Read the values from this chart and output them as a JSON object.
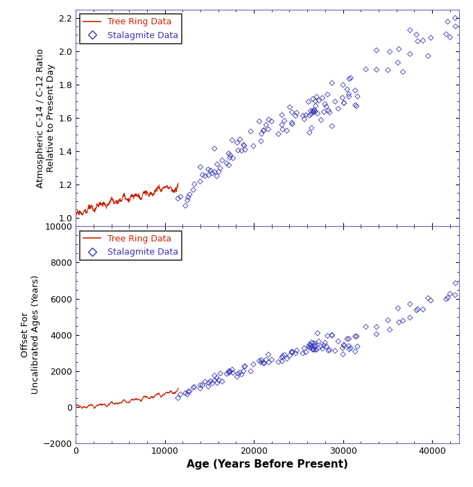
{
  "xlabel": "Age (Years Before Present)",
  "ylabel1": "Atmospheric C-14 / C-12 Ratio\nRelative to Present Day",
  "ylabel2": "Offset For\nUncalibrated Ages (Years)",
  "xlim": [
    0,
    43000
  ],
  "ylim1": [
    0.95,
    2.25
  ],
  "ylim2": [
    -2000,
    10000
  ],
  "yticks1": [
    1.0,
    1.2,
    1.4,
    1.6,
    1.8,
    2.0,
    2.2
  ],
  "yticks2": [
    -2000,
    0,
    2000,
    4000,
    6000,
    8000,
    10000
  ],
  "xticks": [
    0,
    10000,
    20000,
    30000,
    40000
  ],
  "tree_color": "#cc2200",
  "stalagmite_color": "#3333bb",
  "background_color": "#ffffff",
  "spine_color": "#6666cc",
  "legend_label_tree": "Tree Ring Data",
  "legend_label_stal": "Stalagmite Data"
}
